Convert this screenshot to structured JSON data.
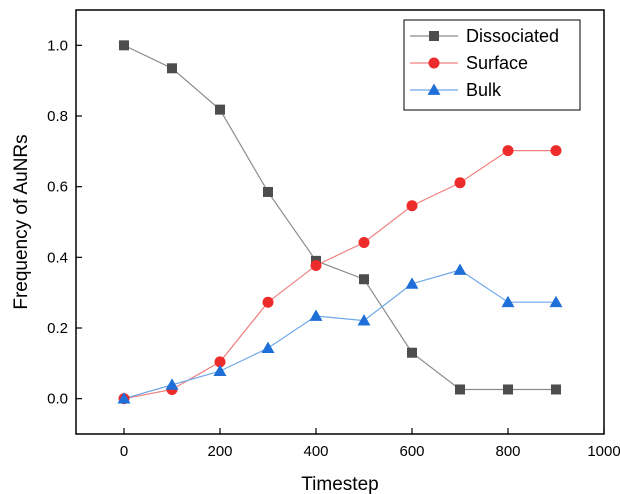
{
  "chart_data": {
    "type": "line",
    "xlabel": "Timestep",
    "ylabel": "Frequency of AuNRs",
    "xlim": [
      -100,
      1000
    ],
    "ylim": [
      -0.1,
      1.1
    ],
    "xticks": [
      0,
      200,
      400,
      600,
      800,
      1000
    ],
    "yticks": [
      0.0,
      0.2,
      0.4,
      0.6,
      0.8,
      1.0
    ],
    "xtick_labels": [
      "0",
      "200",
      "400",
      "600",
      "800",
      "1000"
    ],
    "ytick_labels": [
      "0.0",
      "0.2",
      "0.4",
      "0.6",
      "0.8",
      "1.0"
    ],
    "grid": false,
    "legend_position": "top-right",
    "x": [
      0,
      100,
      200,
      300,
      400,
      500,
      600,
      700,
      800,
      900
    ],
    "series": [
      {
        "name": "Dissociated",
        "marker": "square",
        "color": "#4d4d4d",
        "line_color": "#8c8c8c",
        "values": [
          1.0,
          0.935,
          0.818,
          0.585,
          0.39,
          0.338,
          0.13,
          0.026,
          0.026,
          0.026
        ]
      },
      {
        "name": "Surface",
        "marker": "circle",
        "color": "#ee2b2b",
        "line_color": "#f08080",
        "values": [
          0.0,
          0.026,
          0.104,
          0.273,
          0.377,
          0.442,
          0.546,
          0.611,
          0.702,
          0.702
        ]
      },
      {
        "name": "Bulk",
        "marker": "triangle",
        "color": "#1f6fd8",
        "line_color": "#6fa8e8",
        "values": [
          0.0,
          0.039,
          0.078,
          0.143,
          0.234,
          0.221,
          0.325,
          0.364,
          0.273,
          0.273
        ]
      }
    ]
  }
}
